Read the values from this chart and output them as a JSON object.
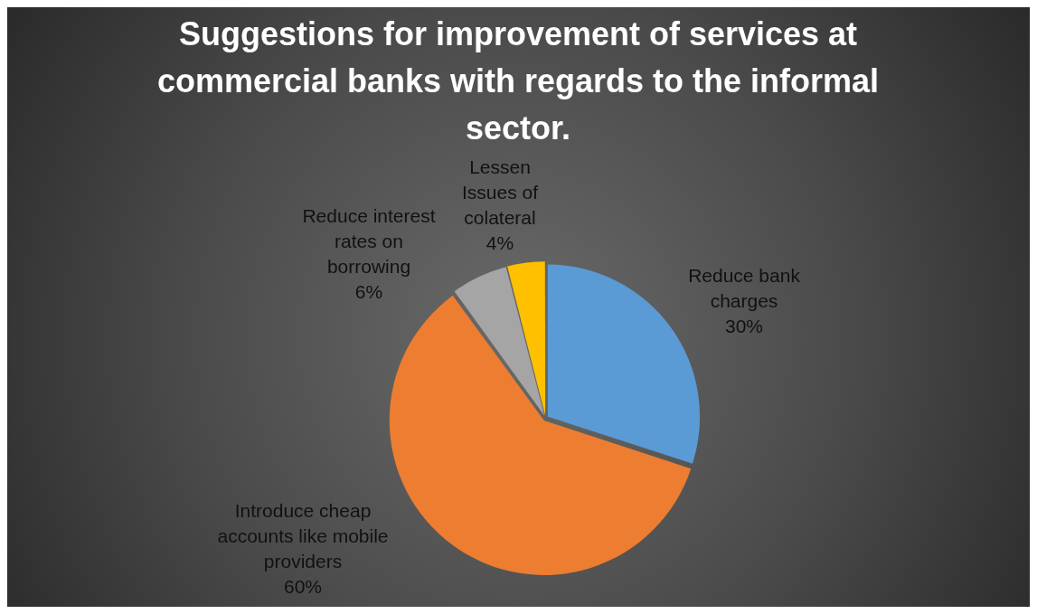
{
  "chart_data": {
    "type": "pie",
    "title": "Suggestions for improvement of services at commercial banks with regards to the informal sector.",
    "categories": [
      "Reduce bank charges",
      "Introduce cheap accounts like mobile providers",
      "Reduce interest rates on borrowing",
      "Lessen Issues of colateral"
    ],
    "values": [
      30,
      60,
      6,
      4
    ],
    "colors": [
      "#5b9bd5",
      "#ed7d31",
      "#a5a5a5",
      "#ffc000"
    ],
    "value_labels": [
      "30%",
      "60%",
      "6%",
      "4%"
    ],
    "legend": false
  }
}
